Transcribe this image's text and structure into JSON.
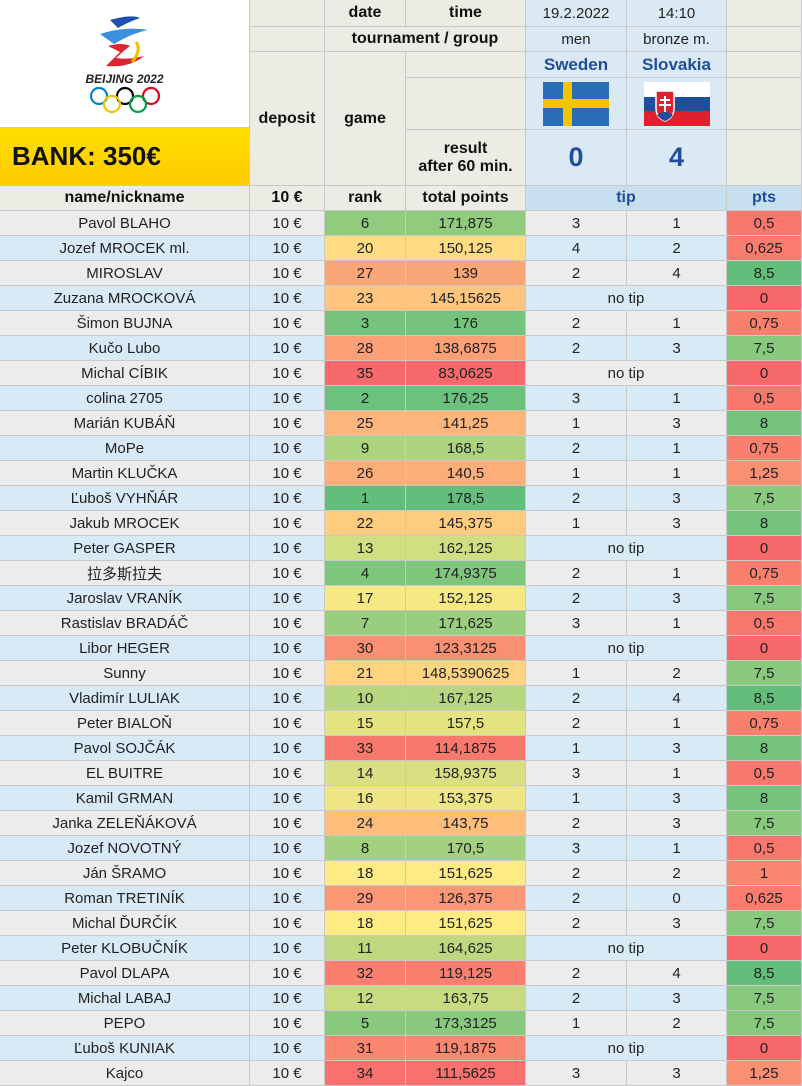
{
  "logo": {
    "text": "BEIJING 2022"
  },
  "bank": "BANK: 350€",
  "header": {
    "date_label": "date",
    "time_label": "time",
    "date_value": "19.2.2022",
    "time_value": "14:10",
    "tournament_label": "tournament / group",
    "tournament_value": "men",
    "group_value": "bronze m.",
    "deposit_label": "deposit",
    "game_label": "game",
    "result_label_1": "result",
    "result_label_2": "after 60 min.",
    "team_home": "Sweden",
    "team_away": "Slovakia",
    "score_home": "0",
    "score_away": "4"
  },
  "columns": {
    "name": "name/nickname",
    "deposit": "10 €",
    "rank": "rank",
    "total": "total points",
    "tip": "tip",
    "pts": "pts"
  },
  "colors": {
    "flag_sweden_blue": "#2a6db5",
    "flag_sweden_yellow": "#f5c400",
    "flag_slovakia_red": "#e0202c",
    "flag_slovakia_blue": "#1f4f9a"
  },
  "rows": [
    {
      "name": "Pavol BLAHO",
      "deposit": "10 €",
      "rank": "6",
      "total": "171,875",
      "tip_home": "3",
      "tip_away": "1",
      "no_tip": "",
      "pts": "0,5"
    },
    {
      "name": "Jozef MROCEK ml.",
      "deposit": "10 €",
      "rank": "20",
      "total": "150,125",
      "tip_home": "4",
      "tip_away": "2",
      "no_tip": "",
      "pts": "0,625"
    },
    {
      "name": "MIROSLAV",
      "deposit": "10 €",
      "rank": "27",
      "total": "139",
      "tip_home": "2",
      "tip_away": "4",
      "no_tip": "",
      "pts": "8,5"
    },
    {
      "name": "Zuzana MROCKOVÁ",
      "deposit": "10 €",
      "rank": "23",
      "total": "145,15625",
      "tip_home": "",
      "tip_away": "",
      "no_tip": "no tip",
      "pts": "0"
    },
    {
      "name": "Šimon BUJNA",
      "deposit": "10 €",
      "rank": "3",
      "total": "176",
      "tip_home": "2",
      "tip_away": "1",
      "no_tip": "",
      "pts": "0,75"
    },
    {
      "name": "Kučo Lubo",
      "deposit": "10 €",
      "rank": "28",
      "total": "138,6875",
      "tip_home": "2",
      "tip_away": "3",
      "no_tip": "",
      "pts": "7,5"
    },
    {
      "name": "Michal CÍBIK",
      "deposit": "10 €",
      "rank": "35",
      "total": "83,0625",
      "tip_home": "",
      "tip_away": "",
      "no_tip": "no tip",
      "pts": "0"
    },
    {
      "name": "colina 2705",
      "deposit": "10 €",
      "rank": "2",
      "total": "176,25",
      "tip_home": "3",
      "tip_away": "1",
      "no_tip": "",
      "pts": "0,5"
    },
    {
      "name": "Marián KUBÁŇ",
      "deposit": "10 €",
      "rank": "25",
      "total": "141,25",
      "tip_home": "1",
      "tip_away": "3",
      "no_tip": "",
      "pts": "8"
    },
    {
      "name": "MoPe",
      "deposit": "10 €",
      "rank": "9",
      "total": "168,5",
      "tip_home": "2",
      "tip_away": "1",
      "no_tip": "",
      "pts": "0,75"
    },
    {
      "name": "Martin KLUČKA",
      "deposit": "10 €",
      "rank": "26",
      "total": "140,5",
      "tip_home": "1",
      "tip_away": "1",
      "no_tip": "",
      "pts": "1,25"
    },
    {
      "name": "Ľuboš VYHŇÁR",
      "deposit": "10 €",
      "rank": "1",
      "total": "178,5",
      "tip_home": "2",
      "tip_away": "3",
      "no_tip": "",
      "pts": "7,5"
    },
    {
      "name": "Jakub MROCEK",
      "deposit": "10 €",
      "rank": "22",
      "total": "145,375",
      "tip_home": "1",
      "tip_away": "3",
      "no_tip": "",
      "pts": "8"
    },
    {
      "name": "Peter GASPER",
      "deposit": "10 €",
      "rank": "13",
      "total": "162,125",
      "tip_home": "",
      "tip_away": "",
      "no_tip": "no tip",
      "pts": "0"
    },
    {
      "name": "拉多斯拉夫",
      "deposit": "10 €",
      "rank": "4",
      "total": "174,9375",
      "tip_home": "2",
      "tip_away": "1",
      "no_tip": "",
      "pts": "0,75"
    },
    {
      "name": "Jaroslav VRANÍK",
      "deposit": "10 €",
      "rank": "17",
      "total": "152,125",
      "tip_home": "2",
      "tip_away": "3",
      "no_tip": "",
      "pts": "7,5"
    },
    {
      "name": "Rastislav BRADÁČ",
      "deposit": "10 €",
      "rank": "7",
      "total": "171,625",
      "tip_home": "3",
      "tip_away": "1",
      "no_tip": "",
      "pts": "0,5"
    },
    {
      "name": "Libor HEGER",
      "deposit": "10 €",
      "rank": "30",
      "total": "123,3125",
      "tip_home": "",
      "tip_away": "",
      "no_tip": "no tip",
      "pts": "0"
    },
    {
      "name": "Sunny",
      "deposit": "10 €",
      "rank": "21",
      "total": "148,5390625",
      "tip_home": "1",
      "tip_away": "2",
      "no_tip": "",
      "pts": "7,5"
    },
    {
      "name": "Vladimír LULIAK",
      "deposit": "10 €",
      "rank": "10",
      "total": "167,125",
      "tip_home": "2",
      "tip_away": "4",
      "no_tip": "",
      "pts": "8,5"
    },
    {
      "name": "Peter BIALOŇ",
      "deposit": "10 €",
      "rank": "15",
      "total": "157,5",
      "tip_home": "2",
      "tip_away": "1",
      "no_tip": "",
      "pts": "0,75"
    },
    {
      "name": "Pavol SOJČÁK",
      "deposit": "10 €",
      "rank": "33",
      "total": "114,1875",
      "tip_home": "1",
      "tip_away": "3",
      "no_tip": "",
      "pts": "8"
    },
    {
      "name": "EL BUITRE",
      "deposit": "10 €",
      "rank": "14",
      "total": "158,9375",
      "tip_home": "3",
      "tip_away": "1",
      "no_tip": "",
      "pts": "0,5"
    },
    {
      "name": "Kamil GRMAN",
      "deposit": "10 €",
      "rank": "16",
      "total": "153,375",
      "tip_home": "1",
      "tip_away": "3",
      "no_tip": "",
      "pts": "8"
    },
    {
      "name": "Janka ZELEŇÁKOVÁ",
      "deposit": "10 €",
      "rank": "24",
      "total": "143,75",
      "tip_home": "2",
      "tip_away": "3",
      "no_tip": "",
      "pts": "7,5"
    },
    {
      "name": "Jozef NOVOTNÝ",
      "deposit": "10 €",
      "rank": "8",
      "total": "170,5",
      "tip_home": "3",
      "tip_away": "1",
      "no_tip": "",
      "pts": "0,5"
    },
    {
      "name": "Ján ŠRAMO",
      "deposit": "10 €",
      "rank": "18",
      "total": "151,625",
      "tip_home": "2",
      "tip_away": "2",
      "no_tip": "",
      "pts": "1"
    },
    {
      "name": "Roman TRETINÍK",
      "deposit": "10 €",
      "rank": "29",
      "total": "126,375",
      "tip_home": "2",
      "tip_away": "0",
      "no_tip": "",
      "pts": "0,625"
    },
    {
      "name": "Michal ĎURČÍK",
      "deposit": "10 €",
      "rank": "18",
      "total": "151,625",
      "tip_home": "2",
      "tip_away": "3",
      "no_tip": "",
      "pts": "7,5"
    },
    {
      "name": "Peter KLOBUČNÍK",
      "deposit": "10 €",
      "rank": "11",
      "total": "164,625",
      "tip_home": "",
      "tip_away": "",
      "no_tip": "no tip",
      "pts": "0"
    },
    {
      "name": "Pavol DLAPA",
      "deposit": "10 €",
      "rank": "32",
      "total": "119,125",
      "tip_home": "2",
      "tip_away": "4",
      "no_tip": "",
      "pts": "8,5"
    },
    {
      "name": "Michal LABAJ",
      "deposit": "10 €",
      "rank": "12",
      "total": "163,75",
      "tip_home": "2",
      "tip_away": "3",
      "no_tip": "",
      "pts": "7,5"
    },
    {
      "name": "PEPO",
      "deposit": "10 €",
      "rank": "5",
      "total": "173,3125",
      "tip_home": "1",
      "tip_away": "2",
      "no_tip": "",
      "pts": "7,5"
    },
    {
      "name": "Ľuboš KUNIAK",
      "deposit": "10 €",
      "rank": "31",
      "total": "119,1875",
      "tip_home": "",
      "tip_away": "",
      "no_tip": "no tip",
      "pts": "0"
    },
    {
      "name": "Kajco",
      "deposit": "10 €",
      "rank": "34",
      "total": "111,5625",
      "tip_home": "3",
      "tip_away": "3",
      "no_tip": "",
      "pts": "1,25"
    }
  ]
}
